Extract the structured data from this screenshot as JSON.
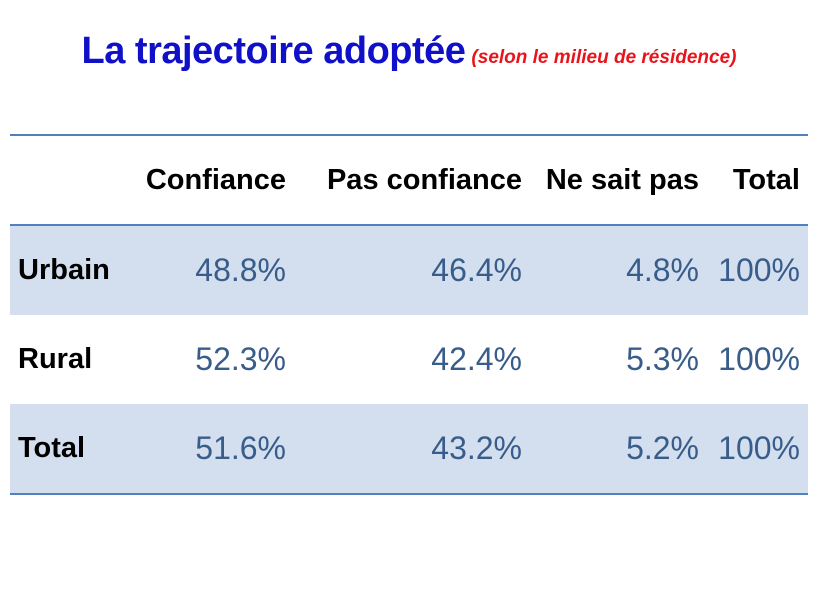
{
  "title": {
    "main": "La trajectoire adoptée",
    "subtitle": "(selon  le milieu de résidence)"
  },
  "colors": {
    "title": "#1010c8",
    "subtitle": "#e8141c",
    "values": "#385d8a",
    "band": "#d3dfee",
    "rule": "#4f81bd"
  },
  "chart_data": {
    "type": "table",
    "title": "La trajectoire adoptée",
    "subtitle": "(selon  le milieu de résidence)",
    "columns": [
      "",
      "Confiance",
      "Pas confiance",
      "Ne sait pas",
      "Total"
    ],
    "rows": [
      {
        "label": "Urbain",
        "cells": [
          "48.8%",
          "46.4%",
          "4.8%",
          "100%"
        ],
        "banded": true
      },
      {
        "label": "Rural",
        "cells": [
          "52.3%",
          "42.4%",
          "5.3%",
          "100%"
        ],
        "banded": false
      },
      {
        "label": "Total",
        "cells": [
          "51.6%",
          "43.2%",
          "5.2%",
          "100%"
        ],
        "banded": true
      }
    ]
  }
}
